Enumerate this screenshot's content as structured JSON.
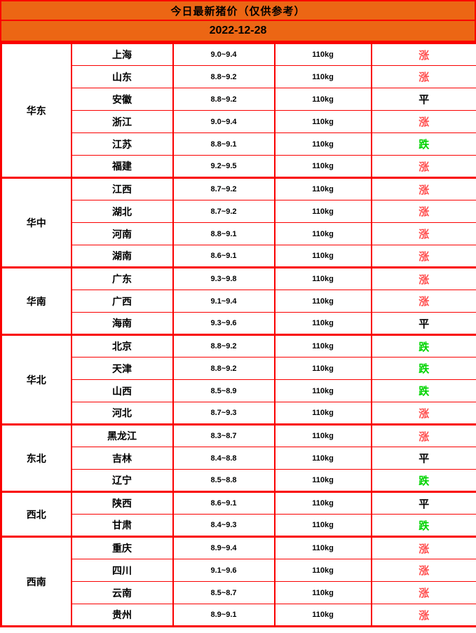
{
  "header": {
    "title": "今日最新猪价（仅供参考）",
    "date": "2022-12-28"
  },
  "colors": {
    "header_bg": "#EC6614",
    "border": "#FA0000",
    "trend": {
      "up": "#FF5050",
      "flat": "#000000",
      "down": "#00D400"
    }
  },
  "table": {
    "groups": [
      {
        "region": "华东",
        "rows": [
          {
            "province": "上海",
            "price": "9.0~9.4",
            "weight": "110kg",
            "trend": "涨",
            "trend_status": "up"
          },
          {
            "province": "山东",
            "price": "8.8~9.2",
            "weight": "110kg",
            "trend": "涨",
            "trend_status": "up"
          },
          {
            "province": "安徽",
            "price": "8.8~9.2",
            "weight": "110kg",
            "trend": "平",
            "trend_status": "flat"
          },
          {
            "province": "浙江",
            "price": "9.0~9.4",
            "weight": "110kg",
            "trend": "涨",
            "trend_status": "up"
          },
          {
            "province": "江苏",
            "price": "8.8~9.1",
            "weight": "110kg",
            "trend": "跌",
            "trend_status": "down"
          },
          {
            "province": "福建",
            "price": "9.2~9.5",
            "weight": "110kg",
            "trend": "涨",
            "trend_status": "up"
          }
        ]
      },
      {
        "region": "华中",
        "rows": [
          {
            "province": "江西",
            "price": "8.7~9.2",
            "weight": "110kg",
            "trend": "涨",
            "trend_status": "up"
          },
          {
            "province": "湖北",
            "price": "8.7~9.2",
            "weight": "110kg",
            "trend": "涨",
            "trend_status": "up"
          },
          {
            "province": "河南",
            "price": "8.8~9.1",
            "weight": "110kg",
            "trend": "涨",
            "trend_status": "up"
          },
          {
            "province": "湖南",
            "price": "8.6~9.1",
            "weight": "110kg",
            "trend": "涨",
            "trend_status": "up"
          }
        ]
      },
      {
        "region": "华南",
        "rows": [
          {
            "province": "广东",
            "price": "9.3~9.8",
            "weight": "110kg",
            "trend": "涨",
            "trend_status": "up"
          },
          {
            "province": "广西",
            "price": "9.1~9.4",
            "weight": "110kg",
            "trend": "涨",
            "trend_status": "up"
          },
          {
            "province": "海南",
            "price": "9.3~9.6",
            "weight": "110kg",
            "trend": "平",
            "trend_status": "flat"
          }
        ]
      },
      {
        "region": "华北",
        "rows": [
          {
            "province": "北京",
            "price": "8.8~9.2",
            "weight": "110kg",
            "trend": "跌",
            "trend_status": "down"
          },
          {
            "province": "天津",
            "price": "8.8~9.2",
            "weight": "110kg",
            "trend": "跌",
            "trend_status": "down"
          },
          {
            "province": "山西",
            "price": "8.5~8.9",
            "weight": "110kg",
            "trend": "跌",
            "trend_status": "down"
          },
          {
            "province": "河北",
            "price": "8.7~9.3",
            "weight": "110kg",
            "trend": "涨",
            "trend_status": "up"
          }
        ]
      },
      {
        "region": "东北",
        "rows": [
          {
            "province": "黑龙江",
            "price": "8.3~8.7",
            "weight": "110kg",
            "trend": "涨",
            "trend_status": "up"
          },
          {
            "province": "吉林",
            "price": "8.4~8.8",
            "weight": "110kg",
            "trend": "平",
            "trend_status": "flat"
          },
          {
            "province": "辽宁",
            "price": "8.5~8.8",
            "weight": "110kg",
            "trend": "跌",
            "trend_status": "down"
          }
        ]
      },
      {
        "region": "西北",
        "rows": [
          {
            "province": "陕西",
            "price": "8.6~9.1",
            "weight": "110kg",
            "trend": "平",
            "trend_status": "flat"
          },
          {
            "province": "甘肃",
            "price": "8.4~9.3",
            "weight": "110kg",
            "trend": "跌",
            "trend_status": "down"
          }
        ]
      },
      {
        "region": "西南",
        "rows": [
          {
            "province": "重庆",
            "price": "8.9~9.4",
            "weight": "110kg",
            "trend": "涨",
            "trend_status": "up"
          },
          {
            "province": "四川",
            "price": "9.1~9.6",
            "weight": "110kg",
            "trend": "涨",
            "trend_status": "up"
          },
          {
            "province": "云南",
            "price": "8.5~8.7",
            "weight": "110kg",
            "trend": "涨",
            "trend_status": "up"
          },
          {
            "province": "贵州",
            "price": "8.9~9.1",
            "weight": "110kg",
            "trend": "涨",
            "trend_status": "up"
          }
        ]
      }
    ]
  },
  "chart_data": {
    "type": "table",
    "title": "今日最新猪价（仅供参考）",
    "date": "2022-12-28",
    "rows": [
      [
        "华东",
        "上海",
        "9.0~9.4",
        "110kg",
        "涨"
      ],
      [
        "华东",
        "山东",
        "8.8~9.2",
        "110kg",
        "涨"
      ],
      [
        "华东",
        "安徽",
        "8.8~9.2",
        "110kg",
        "平"
      ],
      [
        "华东",
        "浙江",
        "9.0~9.4",
        "110kg",
        "涨"
      ],
      [
        "华东",
        "江苏",
        "8.8~9.1",
        "110kg",
        "跌"
      ],
      [
        "华东",
        "福建",
        "9.2~9.5",
        "110kg",
        "涨"
      ],
      [
        "华中",
        "江西",
        "8.7~9.2",
        "110kg",
        "涨"
      ],
      [
        "华中",
        "湖北",
        "8.7~9.2",
        "110kg",
        "涨"
      ],
      [
        "华中",
        "河南",
        "8.8~9.1",
        "110kg",
        "涨"
      ],
      [
        "华中",
        "湖南",
        "8.6~9.1",
        "110kg",
        "涨"
      ],
      [
        "华南",
        "广东",
        "9.3~9.8",
        "110kg",
        "涨"
      ],
      [
        "华南",
        "广西",
        "9.1~9.4",
        "110kg",
        "涨"
      ],
      [
        "华南",
        "海南",
        "9.3~9.6",
        "110kg",
        "平"
      ],
      [
        "华北",
        "北京",
        "8.8~9.2",
        "110kg",
        "跌"
      ],
      [
        "华北",
        "天津",
        "8.8~9.2",
        "110kg",
        "跌"
      ],
      [
        "华北",
        "山西",
        "8.5~8.9",
        "110kg",
        "跌"
      ],
      [
        "华北",
        "河北",
        "8.7~9.3",
        "110kg",
        "涨"
      ],
      [
        "东北",
        "黑龙江",
        "8.3~8.7",
        "110kg",
        "涨"
      ],
      [
        "东北",
        "吉林",
        "8.4~8.8",
        "110kg",
        "平"
      ],
      [
        "东北",
        "辽宁",
        "8.5~8.8",
        "110kg",
        "跌"
      ],
      [
        "西北",
        "陕西",
        "8.6~9.1",
        "110kg",
        "平"
      ],
      [
        "西北",
        "甘肃",
        "8.4~9.3",
        "110kg",
        "跌"
      ],
      [
        "西南",
        "重庆",
        "8.9~9.4",
        "110kg",
        "涨"
      ],
      [
        "西南",
        "四川",
        "9.1~9.6",
        "110kg",
        "涨"
      ],
      [
        "西南",
        "云南",
        "8.5~8.7",
        "110kg",
        "涨"
      ],
      [
        "西南",
        "贵州",
        "8.9~9.1",
        "110kg",
        "涨"
      ]
    ]
  }
}
